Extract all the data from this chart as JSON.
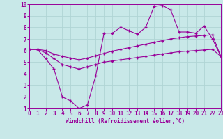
{
  "xlabel": "Windchill (Refroidissement éolien,°C)",
  "x_values": [
    0,
    1,
    2,
    3,
    4,
    5,
    6,
    7,
    8,
    9,
    10,
    11,
    12,
    13,
    14,
    15,
    16,
    17,
    18,
    19,
    20,
    21,
    22,
    23
  ],
  "line1": [
    6.1,
    6.1,
    5.3,
    4.4,
    2.0,
    1.65,
    1.0,
    1.3,
    3.8,
    7.5,
    7.5,
    8.0,
    7.7,
    7.4,
    8.0,
    9.8,
    9.9,
    9.5,
    7.6,
    7.6,
    7.5,
    8.1,
    7.0,
    5.5
  ],
  "line2": [
    6.1,
    6.1,
    6.0,
    5.7,
    5.5,
    5.35,
    5.2,
    5.35,
    5.55,
    5.75,
    5.95,
    6.1,
    6.25,
    6.4,
    6.55,
    6.7,
    6.85,
    7.0,
    7.1,
    7.2,
    7.25,
    7.3,
    7.35,
    5.5
  ],
  "line3": [
    6.1,
    6.1,
    5.8,
    5.3,
    4.8,
    4.6,
    4.4,
    4.6,
    4.8,
    5.0,
    5.1,
    5.2,
    5.3,
    5.4,
    5.5,
    5.6,
    5.7,
    5.8,
    5.9,
    5.95,
    6.0,
    6.05,
    6.1,
    5.5
  ],
  "line_color": "#990099",
  "bg_color": "#c8e8e8",
  "grid_color": "#b0d4d4",
  "ylim": [
    1,
    10
  ],
  "xlim": [
    0,
    23
  ],
  "yticks": [
    1,
    2,
    3,
    4,
    5,
    6,
    7,
    8,
    9,
    10
  ],
  "xticks": [
    0,
    1,
    2,
    3,
    4,
    5,
    6,
    7,
    8,
    9,
    10,
    11,
    12,
    13,
    14,
    15,
    16,
    17,
    18,
    19,
    20,
    21,
    22,
    23
  ],
  "marker": "+",
  "markersize": 3.5,
  "linewidth": 0.8,
  "tick_fontsize": 5.5,
  "xlabel_fontsize": 5.5
}
